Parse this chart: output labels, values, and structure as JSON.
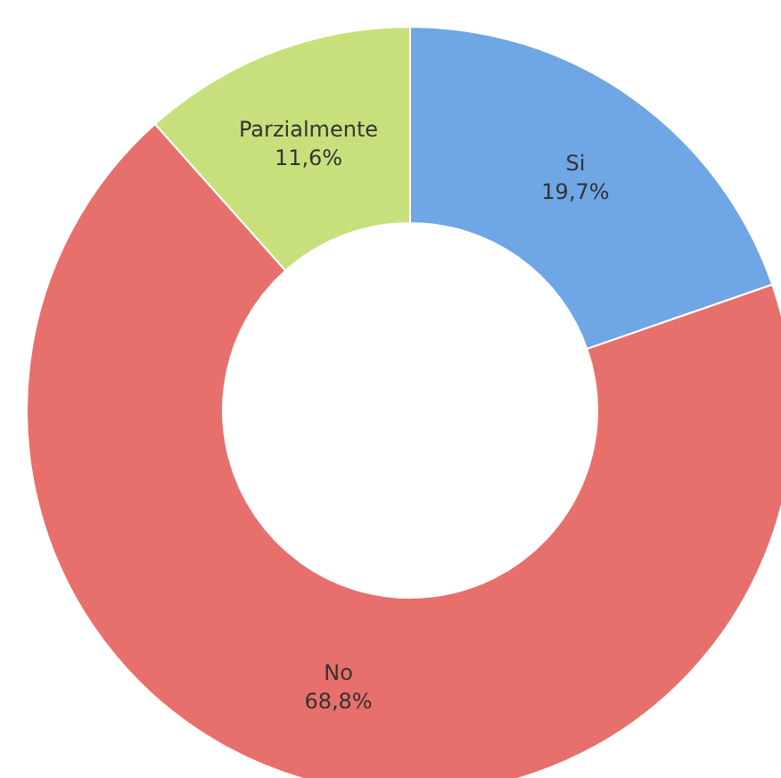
{
  "chart_data": {
    "type": "donut",
    "categories": [
      "Si",
      "No",
      "Parzialmente"
    ],
    "values": [
      19.7,
      68.8,
      11.6
    ],
    "colors": [
      "#6fa6e6",
      "#e8706c",
      "#c8e07c"
    ],
    "value_labels": [
      "19,7%",
      "68,8%",
      "11,6%"
    ],
    "legend": false
  }
}
